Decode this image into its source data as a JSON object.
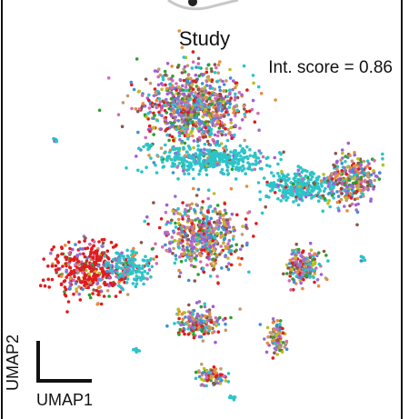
{
  "chart_data": {
    "type": "scatter",
    "title": "Study",
    "annotation": "Int. score = 0.86",
    "xlabel": "UMAP1",
    "ylabel": "UMAP2",
    "legend": "none",
    "grid": false,
    "palette": [
      "#e31a1c",
      "#d36bb2",
      "#9a6fd0",
      "#3f8fd6",
      "#2ca02c",
      "#bcbd22",
      "#c49a6c",
      "#e88c3a",
      "#8c564b",
      "#a65bd6",
      "#2bc4c9"
    ],
    "clusters": [
      {
        "center": [
          213,
          118
        ],
        "spread": [
          50,
          38
        ],
        "count": 900,
        "mix": "mixed"
      },
      {
        "center": [
          230,
          175
        ],
        "spread": [
          55,
          14
        ],
        "count": 380,
        "mix": "cyan"
      },
      {
        "center": [
          330,
          205
        ],
        "spread": [
          38,
          15
        ],
        "count": 300,
        "mix": "cyan"
      },
      {
        "center": [
          388,
          198
        ],
        "spread": [
          25,
          25
        ],
        "count": 300,
        "mix": "mixed"
      },
      {
        "center": [
          222,
          260
        ],
        "spread": [
          40,
          34
        ],
        "count": 520,
        "mix": "mixed"
      },
      {
        "center": [
          100,
          298
        ],
        "spread": [
          38,
          27
        ],
        "count": 420,
        "mix": "red"
      },
      {
        "center": [
          142,
          294
        ],
        "spread": [
          22,
          16
        ],
        "count": 150,
        "mix": "cyan"
      },
      {
        "center": [
          335,
          294
        ],
        "spread": [
          18,
          18
        ],
        "count": 200,
        "mix": "mixed"
      },
      {
        "center": [
          218,
          355
        ],
        "spread": [
          22,
          15
        ],
        "count": 180,
        "mix": "mixed"
      },
      {
        "center": [
          305,
          372
        ],
        "spread": [
          10,
          16
        ],
        "count": 90,
        "mix": "mixed"
      },
      {
        "center": [
          232,
          413
        ],
        "spread": [
          15,
          9
        ],
        "count": 90,
        "mix": "mixed"
      },
      {
        "center": [
          60,
          155
        ],
        "spread": [
          3,
          3
        ],
        "count": 8,
        "mix": "cyan"
      },
      {
        "center": [
          165,
          160
        ],
        "spread": [
          4,
          4
        ],
        "count": 10,
        "mix": "cyan"
      },
      {
        "center": [
          150,
          385
        ],
        "spread": [
          3,
          3
        ],
        "count": 6,
        "mix": "cyan"
      },
      {
        "center": [
          255,
          438
        ],
        "spread": [
          3,
          3
        ],
        "count": 6,
        "mix": "cyan"
      },
      {
        "center": [
          400,
          285
        ],
        "spread": [
          3,
          3
        ],
        "count": 6,
        "mix": "cyan"
      }
    ]
  }
}
